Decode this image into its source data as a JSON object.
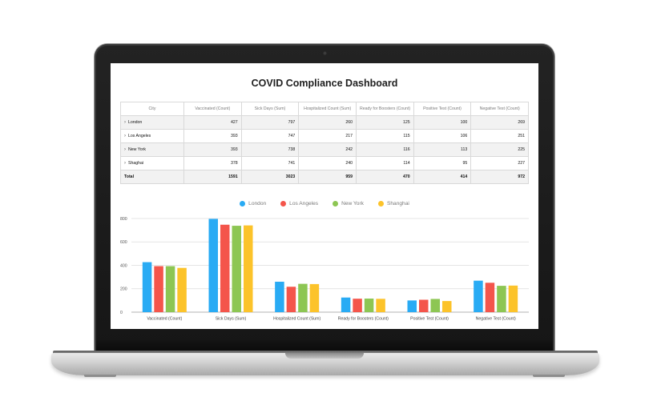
{
  "dashboard": {
    "title": "COVID Compliance Dashboard"
  },
  "table": {
    "headers": [
      "City",
      "Vaccinated (Count)",
      "Sick Days (Sum)",
      "Hospitalized Count (Sum)",
      "Ready for Boosters (Count)",
      "Positive Test (Count)",
      "Negative Test (Count)"
    ],
    "rows": [
      {
        "city": "London",
        "values": [
          "427",
          "797",
          "260",
          "125",
          "100",
          "269"
        ]
      },
      {
        "city": "Los Angeles",
        "values": [
          "393",
          "747",
          "217",
          "115",
          "106",
          "251"
        ]
      },
      {
        "city": "New York",
        "values": [
          "393",
          "738",
          "242",
          "116",
          "113",
          "225"
        ]
      },
      {
        "city": "Shaghai",
        "values": [
          "378",
          "741",
          "240",
          "114",
          "95",
          "227"
        ]
      }
    ],
    "total": {
      "label": "Total",
      "values": [
        "1591",
        "3023",
        "959",
        "470",
        "414",
        "972"
      ]
    }
  },
  "icons": {
    "row_expand": "chevron-right-icon"
  },
  "chart_data": {
    "type": "bar",
    "categories": [
      "Vaccinated (Count)",
      "Sick Days (Sum)",
      "Hospitalized Count (Sum)",
      "Ready for Boosters (Count)",
      "Positive Test (Count)",
      "Negative Test (Count)"
    ],
    "series": [
      {
        "name": "London",
        "color": "#29abf4",
        "values": [
          427,
          797,
          260,
          125,
          100,
          269
        ]
      },
      {
        "name": "Los Angeles",
        "color": "#f4554b",
        "values": [
          393,
          747,
          217,
          115,
          106,
          251
        ]
      },
      {
        "name": "New York",
        "color": "#8dc653",
        "values": [
          393,
          738,
          242,
          116,
          113,
          225
        ]
      },
      {
        "name": "Shanghai",
        "color": "#fcc32a",
        "values": [
          378,
          741,
          240,
          114,
          95,
          227
        ]
      }
    ],
    "yticks": [
      0,
      200,
      400,
      600,
      800
    ],
    "ylim": [
      0,
      800
    ],
    "legend_position": "top-center",
    "grid": true,
    "title": "",
    "xlabel": "",
    "ylabel": ""
  }
}
